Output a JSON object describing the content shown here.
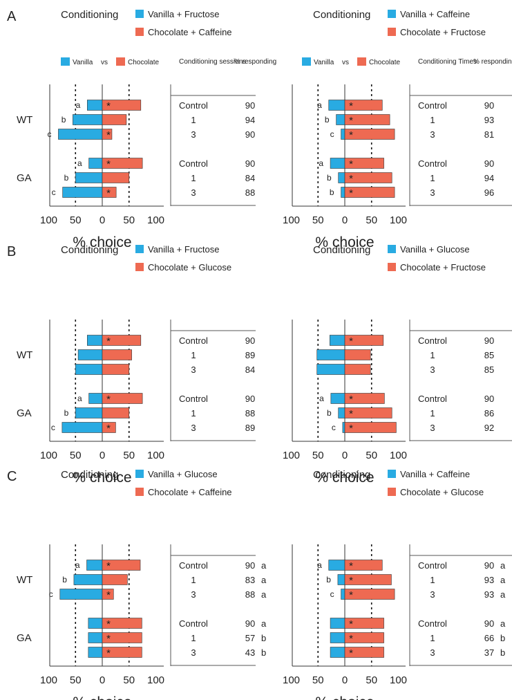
{
  "colors": {
    "vanilla": "#29ABE2",
    "chocolate": "#EE6A52",
    "stroke": "#333333"
  },
  "common": {
    "conditioning_label": "Conditioning",
    "legend_vanilla": "Vanilla",
    "legend_vs": "vs",
    "legend_chocolate": "Chocolate",
    "xlabel": "% choice",
    "xticks": [
      "100",
      "50",
      "0",
      "50",
      "100"
    ],
    "groups": [
      "WT",
      "GA"
    ],
    "rows": [
      "Control",
      "1",
      "3"
    ]
  },
  "chart_data": [
    {
      "panel": "A",
      "type": "bar",
      "legend": [
        "Vanilla + Fructose",
        "Chocolate + Caffeine"
      ],
      "table_header": [
        "Conditioning sessions",
        "% responding"
      ],
      "show_bar_legend": true,
      "bars": [
        {
          "group": "WT",
          "row": "Control",
          "vanilla": 28,
          "chocolate": 72,
          "star": true,
          "letter": "a"
        },
        {
          "group": "WT",
          "row": "1",
          "vanilla": 55,
          "chocolate": 45,
          "star": false,
          "letter": "b"
        },
        {
          "group": "WT",
          "row": "3",
          "vanilla": 82,
          "chocolate": 18,
          "star": true,
          "letter": "c"
        },
        {
          "group": "GA",
          "row": "Control",
          "vanilla": 25,
          "chocolate": 75,
          "star": true,
          "letter": "a"
        },
        {
          "group": "GA",
          "row": "1",
          "vanilla": 50,
          "chocolate": 50,
          "star": false,
          "letter": "b"
        },
        {
          "group": "GA",
          "row": "3",
          "vanilla": 74,
          "chocolate": 26,
          "star": true,
          "letter": "c"
        }
      ],
      "table": [
        {
          "row": "Control",
          "pct": "90",
          "sig": ""
        },
        {
          "row": "1",
          "pct": "94",
          "sig": ""
        },
        {
          "row": "3",
          "pct": "90",
          "sig": ""
        },
        {
          "row": "Control",
          "pct": "90",
          "sig": ""
        },
        {
          "row": "1",
          "pct": "84",
          "sig": ""
        },
        {
          "row": "3",
          "pct": "88",
          "sig": ""
        }
      ]
    },
    {
      "panel": "",
      "type": "bar",
      "legend": [
        "Vanilla + Caffeine",
        "Chocolate + Fructose"
      ],
      "table_header": [
        "Conditioning Times",
        "% responding"
      ],
      "show_bar_legend": true,
      "bars": [
        {
          "group": "WT",
          "row": "Control",
          "vanilla": 30,
          "chocolate": 70,
          "star": true,
          "letter": "a"
        },
        {
          "group": "WT",
          "row": "1",
          "vanilla": 16,
          "chocolate": 84,
          "star": true,
          "letter": "b"
        },
        {
          "group": "WT",
          "row": "3",
          "vanilla": 7,
          "chocolate": 93,
          "star": true,
          "letter": "c"
        },
        {
          "group": "GA",
          "row": "Control",
          "vanilla": 27,
          "chocolate": 73,
          "star": true,
          "letter": "a"
        },
        {
          "group": "GA",
          "row": "1",
          "vanilla": 12,
          "chocolate": 88,
          "star": true,
          "letter": "b"
        },
        {
          "group": "GA",
          "row": "3",
          "vanilla": 7,
          "chocolate": 93,
          "star": true,
          "letter": "b"
        }
      ],
      "table": [
        {
          "row": "Control",
          "pct": "90",
          "sig": ""
        },
        {
          "row": "1",
          "pct": "93",
          "sig": ""
        },
        {
          "row": "3",
          "pct": "81",
          "sig": ""
        },
        {
          "row": "Control",
          "pct": "90",
          "sig": ""
        },
        {
          "row": "1",
          "pct": "94",
          "sig": ""
        },
        {
          "row": "3",
          "pct": "96",
          "sig": ""
        }
      ]
    },
    {
      "panel": "B",
      "type": "bar",
      "legend": [
        "Vanilla + Fructose",
        "Chocolate + Glucose"
      ],
      "table_header": [
        "",
        ""
      ],
      "show_bar_legend": false,
      "bars": [
        {
          "group": "WT",
          "row": "Control",
          "vanilla": 28,
          "chocolate": 72,
          "star": true,
          "letter": ""
        },
        {
          "group": "WT",
          "row": "1",
          "vanilla": 45,
          "chocolate": 55,
          "star": false,
          "letter": ""
        },
        {
          "group": "WT",
          "row": "3",
          "vanilla": 50,
          "chocolate": 50,
          "star": false,
          "letter": ""
        },
        {
          "group": "GA",
          "row": "Control",
          "vanilla": 25,
          "chocolate": 75,
          "star": true,
          "letter": "a"
        },
        {
          "group": "GA",
          "row": "1",
          "vanilla": 50,
          "chocolate": 50,
          "star": false,
          "letter": "b"
        },
        {
          "group": "GA",
          "row": "3",
          "vanilla": 75,
          "chocolate": 25,
          "star": true,
          "letter": "c"
        }
      ],
      "table": [
        {
          "row": "Control",
          "pct": "90",
          "sig": ""
        },
        {
          "row": "1",
          "pct": "89",
          "sig": ""
        },
        {
          "row": "3",
          "pct": "84",
          "sig": ""
        },
        {
          "row": "Control",
          "pct": "90",
          "sig": ""
        },
        {
          "row": "1",
          "pct": "88",
          "sig": ""
        },
        {
          "row": "3",
          "pct": "89",
          "sig": ""
        }
      ]
    },
    {
      "panel": "",
      "type": "bar",
      "legend": [
        "Vanilla + Glucose",
        "Chocolate + Fructose"
      ],
      "table_header": [
        "",
        ""
      ],
      "show_bar_legend": false,
      "bars": [
        {
          "group": "WT",
          "row": "Control",
          "vanilla": 28,
          "chocolate": 72,
          "star": true,
          "letter": ""
        },
        {
          "group": "WT",
          "row": "1",
          "vanilla": 52,
          "chocolate": 48,
          "star": false,
          "letter": ""
        },
        {
          "group": "WT",
          "row": "3",
          "vanilla": 52,
          "chocolate": 48,
          "star": false,
          "letter": ""
        },
        {
          "group": "GA",
          "row": "Control",
          "vanilla": 26,
          "chocolate": 74,
          "star": true,
          "letter": "a"
        },
        {
          "group": "GA",
          "row": "1",
          "vanilla": 12,
          "chocolate": 88,
          "star": true,
          "letter": "b"
        },
        {
          "group": "GA",
          "row": "3",
          "vanilla": 4,
          "chocolate": 96,
          "star": true,
          "letter": "c"
        }
      ],
      "table": [
        {
          "row": "Control",
          "pct": "90",
          "sig": ""
        },
        {
          "row": "1",
          "pct": "85",
          "sig": ""
        },
        {
          "row": "3",
          "pct": "85",
          "sig": ""
        },
        {
          "row": "Control",
          "pct": "90",
          "sig": ""
        },
        {
          "row": "1",
          "pct": "86",
          "sig": ""
        },
        {
          "row": "3",
          "pct": "92",
          "sig": ""
        }
      ]
    },
    {
      "panel": "C",
      "type": "bar",
      "legend": [
        "Vanilla + Glucose",
        "Chocolate + Caffeine"
      ],
      "table_header": [
        "",
        ""
      ],
      "show_bar_legend": false,
      "bars": [
        {
          "group": "WT",
          "row": "Control",
          "vanilla": 29,
          "chocolate": 71,
          "star": true,
          "letter": "a"
        },
        {
          "group": "WT",
          "row": "1",
          "vanilla": 53,
          "chocolate": 47,
          "star": false,
          "letter": "b"
        },
        {
          "group": "WT",
          "row": "3",
          "vanilla": 79,
          "chocolate": 21,
          "star": true,
          "letter": "c"
        },
        {
          "group": "GA",
          "row": "Control",
          "vanilla": 26,
          "chocolate": 74,
          "star": true,
          "letter": ""
        },
        {
          "group": "GA",
          "row": "1",
          "vanilla": 26,
          "chocolate": 74,
          "star": true,
          "letter": ""
        },
        {
          "group": "GA",
          "row": "3",
          "vanilla": 26,
          "chocolate": 74,
          "star": true,
          "letter": ""
        }
      ],
      "table": [
        {
          "row": "Control",
          "pct": "90",
          "sig": "a"
        },
        {
          "row": "1",
          "pct": "83",
          "sig": "a"
        },
        {
          "row": "3",
          "pct": "88",
          "sig": "a"
        },
        {
          "row": "Control",
          "pct": "90",
          "sig": "a"
        },
        {
          "row": "1",
          "pct": "57",
          "sig": "b"
        },
        {
          "row": "3",
          "pct": "43",
          "sig": "b"
        }
      ]
    },
    {
      "panel": "",
      "type": "bar",
      "legend": [
        "Vanilla + Caffeine",
        "Chocolate + Glucose"
      ],
      "table_header": [
        "",
        ""
      ],
      "show_bar_legend": false,
      "bars": [
        {
          "group": "WT",
          "row": "Control",
          "vanilla": 30,
          "chocolate": 70,
          "star": true,
          "letter": "a"
        },
        {
          "group": "WT",
          "row": "1",
          "vanilla": 13,
          "chocolate": 87,
          "star": true,
          "letter": "b"
        },
        {
          "group": "WT",
          "row": "3",
          "vanilla": 7,
          "chocolate": 93,
          "star": true,
          "letter": "c"
        },
        {
          "group": "GA",
          "row": "Control",
          "vanilla": 27,
          "chocolate": 73,
          "star": true,
          "letter": ""
        },
        {
          "group": "GA",
          "row": "1",
          "vanilla": 27,
          "chocolate": 73,
          "star": true,
          "letter": ""
        },
        {
          "group": "GA",
          "row": "3",
          "vanilla": 27,
          "chocolate": 73,
          "star": true,
          "letter": ""
        }
      ],
      "table": [
        {
          "row": "Control",
          "pct": "90",
          "sig": "a"
        },
        {
          "row": "1",
          "pct": "93",
          "sig": "a"
        },
        {
          "row": "3",
          "pct": "93",
          "sig": "a"
        },
        {
          "row": "Control",
          "pct": "90",
          "sig": "a"
        },
        {
          "row": "1",
          "pct": "66",
          "sig": "b"
        },
        {
          "row": "3",
          "pct": "37",
          "sig": "b"
        }
      ]
    }
  ]
}
